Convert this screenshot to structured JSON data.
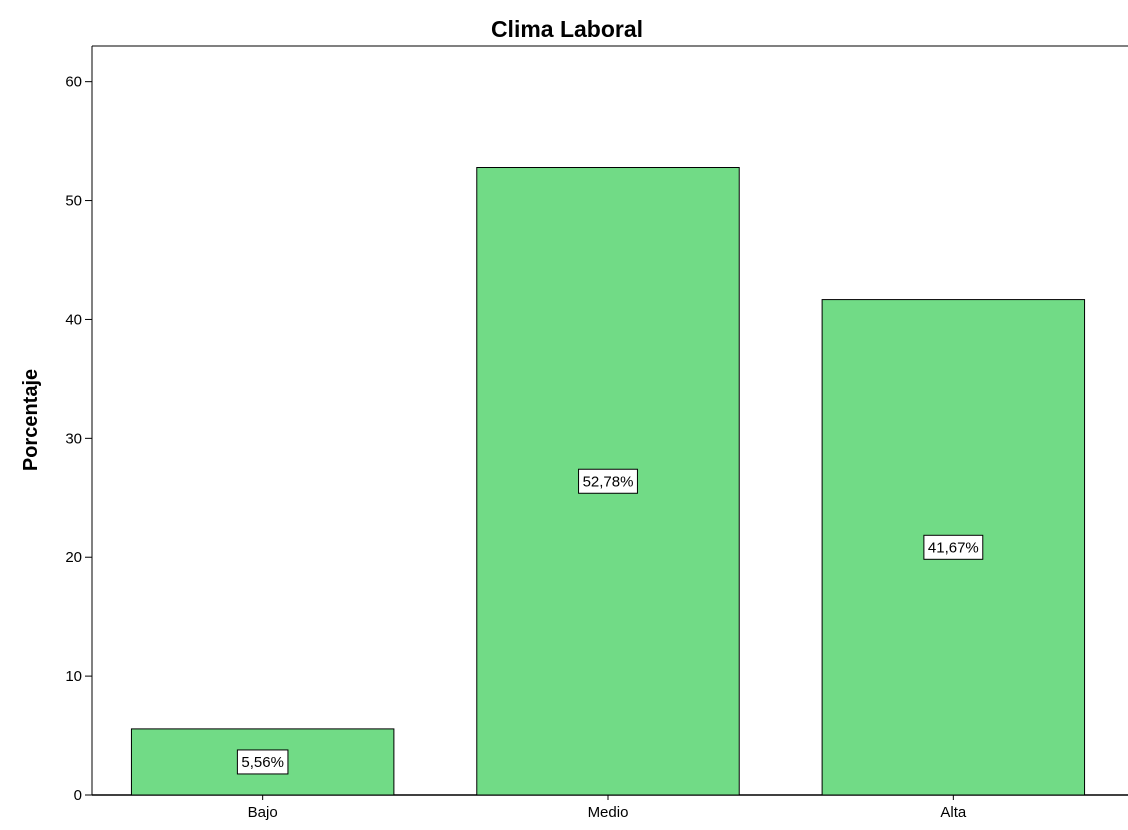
{
  "chart_data": {
    "type": "bar",
    "title": "Clima Laboral",
    "xlabel": "",
    "ylabel": "Porcentaje",
    "categories": [
      "Bajo",
      "Medio",
      "Alta"
    ],
    "values": [
      5.56,
      52.78,
      41.67
    ],
    "data_labels": [
      "5,56%",
      "52,78%",
      "41,67%"
    ],
    "ylim": [
      0,
      63
    ],
    "yticks": [
      0,
      10,
      20,
      30,
      40,
      50,
      60
    ],
    "grid": false,
    "legend": "none",
    "bar_color": "#71db86",
    "bar_stroke": "#000000"
  }
}
